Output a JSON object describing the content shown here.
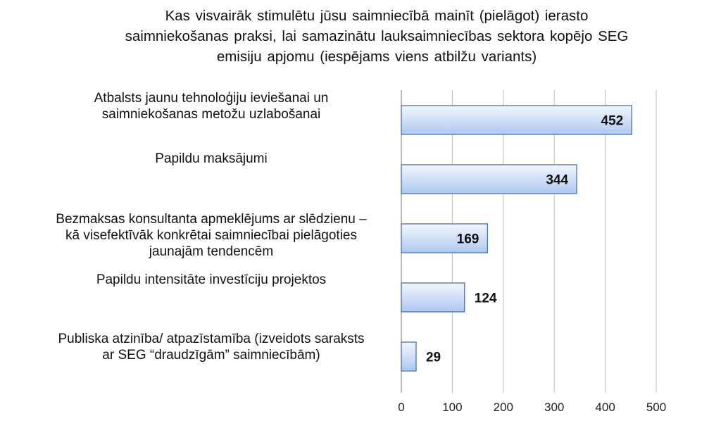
{
  "chart_data": {
    "type": "bar",
    "orientation": "horizontal",
    "title_lines": [
      "Kas visvairāk stimulētu jūsu saimniecībā mainīt (pielāgot) ierasto",
      "saimniekošanas praksi, lai samazinātu lauksaimniecības sektora kopējo SEG",
      "emisiju apjomu (iespējams viens atbilžu variants)"
    ],
    "categories": [
      [
        "Atbalsts jaunu tehnoloģiju ieviešanai un",
        "saimniekošanas metožu uzlabošanai"
      ],
      [
        "Papildu maksājumi"
      ],
      [
        "Bezmaksas konsultanta apmeklējums ar slēdzienu –",
        "kā visefektīvāk konkrētai saimniecībai pielāgoties",
        "jaunajām tendencēm"
      ],
      [
        "Papildu intensitāte investīciju projektos"
      ],
      [
        "Publiska atzinība/ atpazīstamība (izveidots saraksts",
        "ar SEG “draudzīgām” saimniecībām)"
      ]
    ],
    "values": [
      452,
      344,
      169,
      124,
      29
    ],
    "data_labels": [
      "452",
      "344",
      "169",
      "124",
      "29"
    ],
    "xlim": [
      0,
      500
    ],
    "xticks": [
      "0",
      "100",
      "200",
      "300",
      "400",
      "500"
    ],
    "grid": "vertical",
    "bar_color_light": "#f2f6fd",
    "bar_color_dark": "#aec8f0",
    "bar_border": "#4a72b0"
  }
}
